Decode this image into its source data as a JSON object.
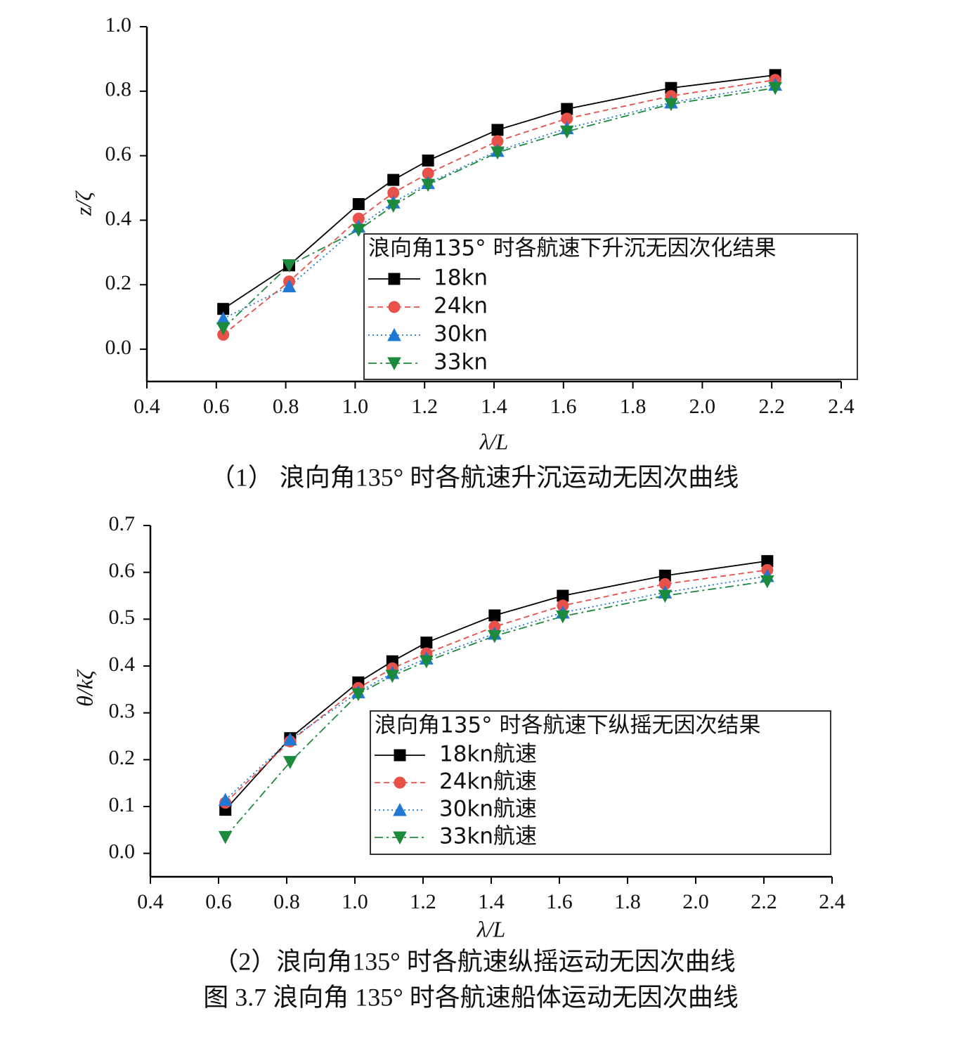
{
  "figure_caption": "图 3.7  浪向角 135°  时各航速船体运动无因次曲线",
  "chart_data": [
    {
      "type": "line",
      "caption": "（1）  浪向角135°  时各航速升沉运动无因次曲线",
      "x_label": "λ/L",
      "y_label": "z/ζ",
      "legend_title": "浪向角135°  时各航速下升沉无因次化结果",
      "x": [
        0.62,
        0.81,
        1.01,
        1.11,
        1.21,
        1.41,
        1.61,
        1.91,
        2.21
      ],
      "series": [
        {
          "name": "18kn",
          "color": "#000000",
          "marker": "square",
          "dash": "solid",
          "values": [
            0.125,
            0.26,
            0.45,
            0.525,
            0.585,
            0.68,
            0.745,
            0.81,
            0.85
          ]
        },
        {
          "name": "24kn",
          "color": "#e8504a",
          "marker": "circle",
          "dash": "dashed",
          "values": [
            0.045,
            0.21,
            0.405,
            0.485,
            0.545,
            0.645,
            0.715,
            0.785,
            0.835
          ]
        },
        {
          "name": "30kn",
          "color": "#1f78d1",
          "marker": "triangle",
          "dash": "dotted",
          "values": [
            0.095,
            0.195,
            0.38,
            0.455,
            0.515,
            0.615,
            0.685,
            0.765,
            0.82
          ]
        },
        {
          "name": "33kn",
          "color": "#1b8a3c",
          "marker": "triangle-down",
          "dash": "dashdot",
          "values": [
            0.065,
            0.26,
            0.37,
            0.445,
            0.51,
            0.61,
            0.675,
            0.76,
            0.81
          ]
        }
      ],
      "xlim": [
        0.4,
        2.4
      ],
      "xticks": [
        0.4,
        0.6,
        0.8,
        {
          "value": 1,
          "label": "1.0"
        },
        1.2,
        1.4,
        1.6,
        1.8,
        {
          "value": 2,
          "label": "2.0"
        },
        2.2,
        2.4
      ],
      "ylim": [
        -0.1,
        1.0
      ],
      "yticks": [
        {
          "value": 0,
          "label": "0.0"
        },
        0.2,
        0.4,
        0.6,
        0.8,
        {
          "value": 1,
          "label": "1.0"
        }
      ]
    },
    {
      "type": "line",
      "caption": "（2）浪向角135°  时各航速纵摇运动无因次曲线",
      "x_label": "λ/L",
      "y_label": "θ/kζ",
      "legend_title": "浪向角135°  时各航速下纵摇无因次结果",
      "x": [
        0.62,
        0.81,
        1.01,
        1.11,
        1.21,
        1.41,
        1.61,
        1.91,
        2.21
      ],
      "series": [
        {
          "name": "18kn航速",
          "color": "#000000",
          "marker": "square",
          "dash": "solid",
          "values": [
            0.093,
            0.246,
            0.365,
            0.41,
            0.45,
            0.508,
            0.55,
            0.593,
            0.624
          ]
        },
        {
          "name": "24kn航速",
          "color": "#e8504a",
          "marker": "circle",
          "dash": "dashed",
          "values": [
            0.108,
            0.239,
            0.353,
            0.395,
            0.427,
            0.484,
            0.529,
            0.575,
            0.605
          ]
        },
        {
          "name": "30kn航速",
          "color": "#1f78d1",
          "marker": "triangle",
          "dash": "dotted",
          "values": [
            0.114,
            0.243,
            0.344,
            0.385,
            0.416,
            0.469,
            0.514,
            0.557,
            0.592
          ]
        },
        {
          "name": "33kn航速",
          "color": "#1b8a3c",
          "marker": "triangle-down",
          "dash": "dashdot",
          "values": [
            0.035,
            0.195,
            0.34,
            0.379,
            0.41,
            0.464,
            0.506,
            0.55,
            0.581
          ]
        }
      ],
      "xlim": [
        0.4,
        2.4
      ],
      "xticks": [
        0.4,
        0.6,
        0.8,
        {
          "value": 1,
          "label": "1.0"
        },
        1.2,
        1.4,
        1.6,
        1.8,
        {
          "value": 2,
          "label": "2.0"
        },
        2.2,
        2.4
      ],
      "ylim": [
        -0.05,
        0.7
      ],
      "yticks": [
        {
          "value": 0,
          "label": "0.0"
        },
        0.1,
        0.2,
        0.3,
        0.4,
        0.5,
        0.6,
        0.7
      ]
    }
  ]
}
